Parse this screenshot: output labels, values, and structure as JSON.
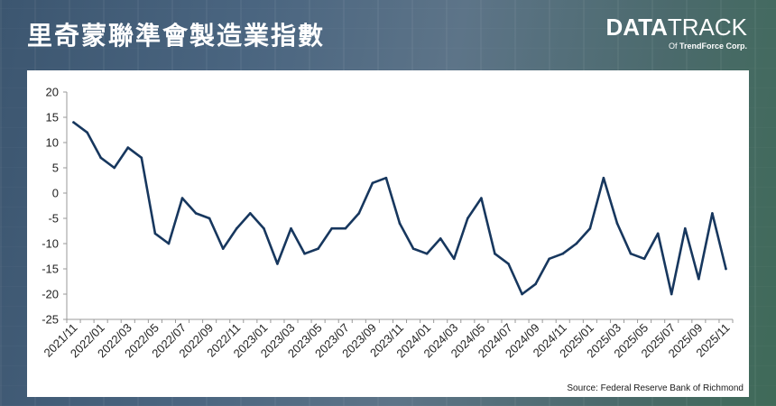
{
  "header": {
    "title": "里奇蒙聯準會製造業指數",
    "brand": {
      "data": "DATA",
      "track": "TRACK",
      "of": "Of",
      "company": "TrendForce Corp."
    }
  },
  "colors": {
    "line": "#17375e",
    "axis": "#999999",
    "panel": "#ffffff",
    "title": "#ffffff"
  },
  "chart_data": {
    "type": "line",
    "title": "里奇蒙聯準會製造業指數",
    "xlabel": "",
    "ylabel": "",
    "ylim": [
      -25,
      20
    ],
    "yticks": [
      20,
      15,
      10,
      5,
      0,
      -5,
      -10,
      -15,
      -20,
      -25
    ],
    "grid": false,
    "x": [
      "2021/11",
      "2021/12",
      "2022/01",
      "2022/02",
      "2022/03",
      "2022/04",
      "2022/05",
      "2022/06",
      "2022/07",
      "2022/08",
      "2022/09",
      "2022/10",
      "2022/11",
      "2022/12",
      "2023/01",
      "2023/02",
      "2023/03",
      "2023/04",
      "2023/05",
      "2023/06",
      "2023/07",
      "2023/08",
      "2023/09",
      "2023/10",
      "2023/11",
      "2023/12",
      "2024/01",
      "2024/02",
      "2024/03",
      "2024/04",
      "2024/05",
      "2024/06",
      "2024/07",
      "2024/08",
      "2024/09",
      "2024/10",
      "2024/11",
      "2024/12",
      "2025/01",
      "2025/02",
      "2025/03",
      "2025/04",
      "2025/05",
      "2025/06",
      "2025/07",
      "2025/08",
      "2025/09",
      "2025/10",
      "2025/11"
    ],
    "xtick_labels": [
      "2021/11",
      "2022/01",
      "2022/03",
      "2022/05",
      "2022/07",
      "2022/09",
      "2022/11",
      "2023/01",
      "2023/03",
      "2023/05",
      "2023/07",
      "2023/09",
      "2023/11",
      "2024/01",
      "2024/03",
      "2024/05",
      "2024/07",
      "2024/09",
      "2024/11",
      "2025/01",
      "2025/03",
      "2025/05",
      "2025/07",
      "2025/09",
      "2025/11"
    ],
    "series": [
      {
        "values": [
          14,
          12,
          7,
          5,
          9,
          7,
          -8,
          -10,
          -1,
          -4,
          -5,
          -11,
          -7,
          -4,
          -7,
          -14,
          -7,
          -12,
          -11,
          -7,
          -7,
          -4,
          2,
          3,
          -6,
          -11,
          -12,
          -9,
          -13,
          -5,
          -1,
          -12,
          -14,
          -20,
          -18,
          -13,
          -12,
          -10,
          -7,
          3,
          -6,
          -12,
          -13,
          -8,
          -20,
          -7,
          -17,
          -4,
          -15
        ]
      }
    ],
    "source": "Source: Federal Reserve Bank of Richmond"
  }
}
